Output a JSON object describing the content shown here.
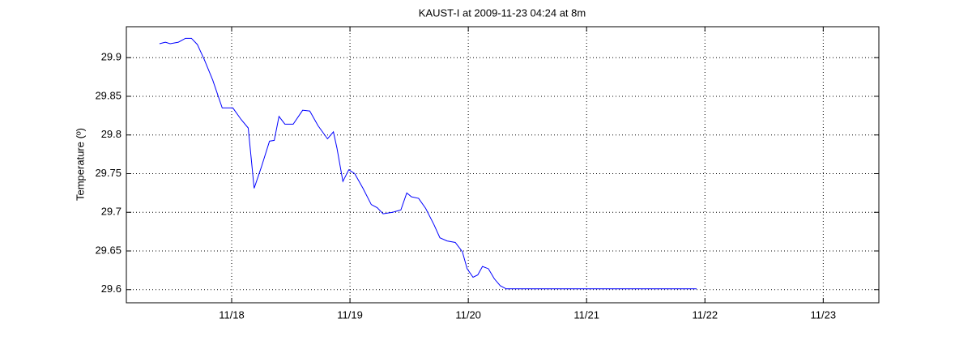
{
  "chart_data": {
    "type": "line",
    "title": "KAUST-I at 2009-11-23 04:24 at 8m",
    "y_label": "Temperature (º)",
    "x": [
      17.39,
      17.44,
      17.48,
      17.55,
      17.61,
      17.66,
      17.71,
      17.77,
      17.84,
      17.92,
      18.01,
      18.08,
      18.14,
      18.19,
      18.25,
      18.32,
      18.36,
      18.4,
      18.45,
      18.52,
      18.6,
      18.66,
      18.73,
      18.81,
      18.86,
      18.89,
      18.94,
      18.99,
      19.04,
      19.11,
      19.18,
      19.23,
      19.28,
      19.36,
      19.43,
      19.48,
      19.52,
      19.58,
      19.64,
      19.71,
      19.76,
      19.82,
      19.89,
      19.95,
      19.99,
      20.04,
      20.08,
      20.12,
      20.17,
      20.22,
      20.27,
      20.32,
      20.84,
      21.93
    ],
    "values": [
      29.918,
      29.92,
      29.918,
      29.92,
      29.925,
      29.925,
      29.917,
      29.897,
      29.871,
      29.835,
      29.835,
      29.82,
      29.809,
      29.731,
      29.758,
      29.792,
      29.793,
      29.824,
      29.814,
      29.814,
      29.832,
      29.831,
      29.812,
      29.795,
      29.804,
      29.783,
      29.74,
      29.755,
      29.75,
      29.731,
      29.71,
      29.706,
      29.698,
      29.7,
      29.703,
      29.725,
      29.72,
      29.718,
      29.705,
      29.684,
      29.667,
      29.663,
      29.661,
      29.649,
      29.627,
      29.616,
      29.619,
      29.63,
      29.627,
      29.614,
      29.605,
      29.601,
      29.601,
      29.601
    ],
    "color": "#0000ff",
    "xlim": [
      17.11,
      23.47
    ],
    "xticks": [
      {
        "value": 18,
        "label": "11/18"
      },
      {
        "value": 19,
        "label": "11/19"
      },
      {
        "value": 20,
        "label": "11/20"
      },
      {
        "value": 21,
        "label": "11/21"
      },
      {
        "value": 22,
        "label": "11/22"
      },
      {
        "value": 23,
        "label": "11/23"
      }
    ],
    "ylim": [
      29.583,
      29.94
    ],
    "yticks": [
      29.6,
      29.65,
      29.7,
      29.75,
      29.8,
      29.85,
      29.9
    ],
    "grid": true
  }
}
